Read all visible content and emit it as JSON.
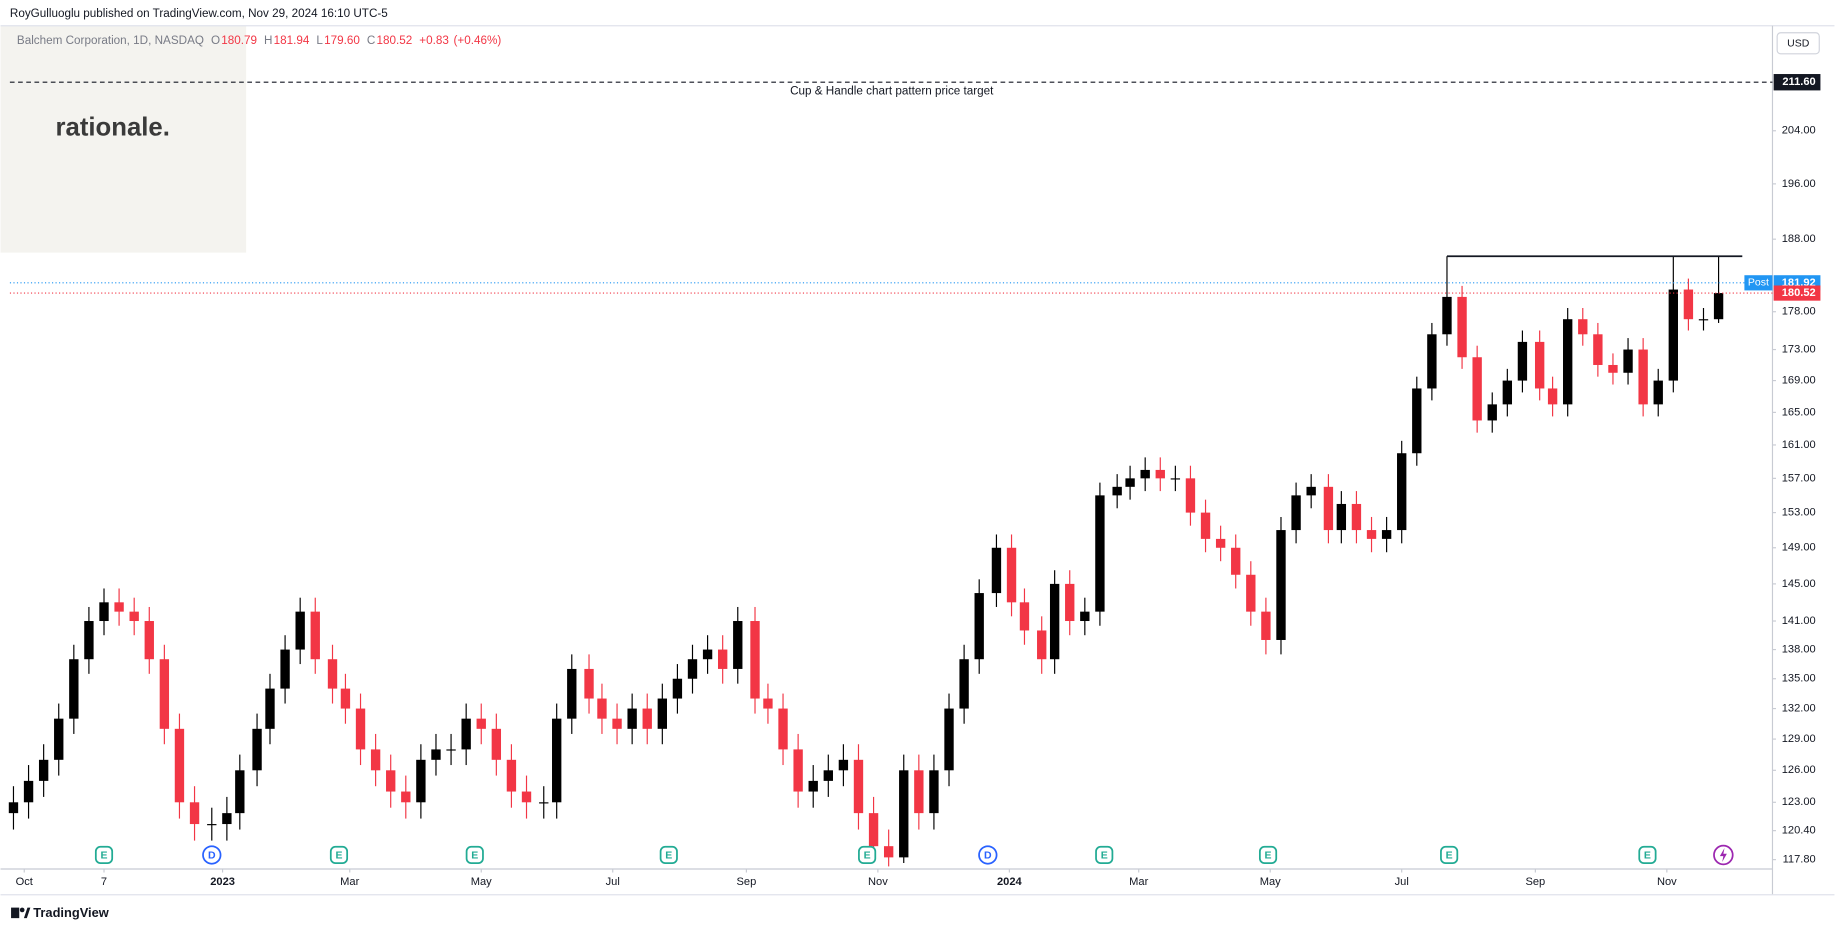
{
  "header": {
    "publisher": "RoyGulluoglu published on TradingView.com, Nov 29, 2024 16:10 UTC-5"
  },
  "watermark": "rationale.",
  "footer": "TradingView",
  "chart_data": {
    "type": "candlestick",
    "currency": "USD",
    "legend": {
      "symbol": "Balchem Corporation, 1D, NASDAQ",
      "fields": [
        {
          "key": "O",
          "value": 180.79
        },
        {
          "key": "H",
          "value": 181.94
        },
        {
          "key": "L",
          "value": 179.6,
          "label": "179.60"
        },
        {
          "key": "C",
          "value": 180.52
        }
      ],
      "change": {
        "value": 0.83,
        "label": "+0.83"
      },
      "change_pct": {
        "value": 0.46,
        "label": "(+0.46%)"
      }
    },
    "log_scale": true,
    "grid": false,
    "up_color": "#000000",
    "down_color": "#f23645",
    "xlim": [
      "2022-09-20",
      "2024-12-20"
    ],
    "xticks": [
      {
        "value": "2022-10-01",
        "label": "Oct"
      },
      {
        "value": "2022-11-07",
        "label": "7"
      },
      {
        "value": "2023-01-01",
        "label": "2023"
      },
      {
        "value": "2023-03-01",
        "label": "Mar"
      },
      {
        "value": "2023-05-01",
        "label": "May"
      },
      {
        "value": "2023-07-01",
        "label": "Jul"
      },
      {
        "value": "2023-09-01",
        "label": "Sep"
      },
      {
        "value": "2023-11-01",
        "label": "Nov"
      },
      {
        "value": "2024-01-01",
        "label": "2024"
      },
      {
        "value": "2024-03-01",
        "label": "Mar"
      },
      {
        "value": "2024-05-01",
        "label": "May"
      },
      {
        "value": "2024-07-01",
        "label": "Jul"
      },
      {
        "value": "2024-09-01",
        "label": "Sep"
      },
      {
        "value": "2024-11-01",
        "label": "Nov"
      }
    ],
    "ylim": [
      116.97,
      220.8
    ],
    "yticks": [
      {
        "value": 117.8,
        "label": "117.80"
      },
      {
        "value": 120.4,
        "label": "120.40"
      },
      {
        "value": 123,
        "label": "123.00"
      },
      {
        "value": 126,
        "label": "126.00"
      },
      {
        "value": 129,
        "label": "129.00"
      },
      {
        "value": 132,
        "label": "132.00"
      },
      {
        "value": 135,
        "label": "135.00"
      },
      {
        "value": 138,
        "label": "138.00"
      },
      {
        "value": 141,
        "label": "141.00"
      },
      {
        "value": 145,
        "label": "145.00"
      },
      {
        "value": 149,
        "label": "149.00"
      },
      {
        "value": 153,
        "label": "153.00"
      },
      {
        "value": 157,
        "label": "157.00"
      },
      {
        "value": 161,
        "label": "161.00"
      },
      {
        "value": 165,
        "label": "165.00"
      },
      {
        "value": 169,
        "label": "169.00"
      },
      {
        "value": 173,
        "label": "173.00"
      },
      {
        "value": 178,
        "label": "178.00"
      },
      {
        "value": 188,
        "label": "188.00"
      },
      {
        "value": 196,
        "label": "196.00"
      },
      {
        "value": 204,
        "label": "204.00"
      }
    ],
    "x": [
      "2022-09-26",
      "2022-10-03",
      "2022-10-10",
      "2022-10-17",
      "2022-10-24",
      "2022-10-31",
      "2022-11-07",
      "2022-11-14",
      "2022-11-21",
      "2022-11-28",
      "2022-12-05",
      "2022-12-12",
      "2022-12-19",
      "2022-12-27",
      "2023-01-03",
      "2023-01-09",
      "2023-01-17",
      "2023-01-23",
      "2023-01-30",
      "2023-02-06",
      "2023-02-13",
      "2023-02-21",
      "2023-02-27",
      "2023-03-06",
      "2023-03-13",
      "2023-03-20",
      "2023-03-27",
      "2023-04-03",
      "2023-04-10",
      "2023-04-17",
      "2023-04-24",
      "2023-05-01",
      "2023-05-08",
      "2023-05-15",
      "2023-05-22",
      "2023-05-30",
      "2023-06-05",
      "2023-06-12",
      "2023-06-20",
      "2023-06-26",
      "2023-07-03",
      "2023-07-10",
      "2023-07-17",
      "2023-07-24",
      "2023-07-31",
      "2023-08-07",
      "2023-08-14",
      "2023-08-21",
      "2023-08-28",
      "2023-09-05",
      "2023-09-11",
      "2023-09-18",
      "2023-09-25",
      "2023-10-02",
      "2023-10-09",
      "2023-10-16",
      "2023-10-23",
      "2023-10-30",
      "2023-11-06",
      "2023-11-13",
      "2023-11-20",
      "2023-11-27",
      "2023-12-04",
      "2023-12-11",
      "2023-12-18",
      "2023-12-26",
      "2024-01-02",
      "2024-01-08",
      "2024-01-16",
      "2024-01-22",
      "2024-01-29",
      "2024-02-05",
      "2024-02-12",
      "2024-02-20",
      "2024-02-26",
      "2024-03-04",
      "2024-03-11",
      "2024-03-18",
      "2024-03-25",
      "2024-04-01",
      "2024-04-08",
      "2024-04-15",
      "2024-04-22",
      "2024-04-29",
      "2024-05-06",
      "2024-05-13",
      "2024-05-20",
      "2024-05-28",
      "2024-06-03",
      "2024-06-10",
      "2024-06-17",
      "2024-06-24",
      "2024-07-01",
      "2024-07-08",
      "2024-07-15",
      "2024-07-22",
      "2024-07-29",
      "2024-08-05",
      "2024-08-12",
      "2024-08-19",
      "2024-08-26",
      "2024-09-03",
      "2024-09-09",
      "2024-09-16",
      "2024-09-23",
      "2024-09-30",
      "2024-10-07",
      "2024-10-14",
      "2024-10-21",
      "2024-10-28",
      "2024-11-04",
      "2024-11-11",
      "2024-11-18",
      "2024-11-25"
    ],
    "open": [
      122,
      123,
      125,
      127,
      131,
      137,
      141,
      143,
      142,
      141,
      137,
      130,
      123,
      121,
      121,
      122,
      126,
      130,
      134,
      138,
      142,
      137,
      134,
      132,
      128,
      126,
      124,
      123,
      127,
      128,
      128,
      131,
      130,
      127,
      124,
      123,
      123,
      131,
      136,
      133,
      131,
      130,
      132,
      130,
      133,
      135,
      137,
      138,
      136,
      141,
      133,
      132,
      128,
      124,
      125,
      126,
      127,
      122,
      119,
      118,
      126,
      122,
      126,
      132,
      137,
      144,
      149,
      143,
      140,
      137,
      145,
      141,
      142,
      155,
      156,
      157,
      158,
      157,
      157,
      153,
      150,
      149,
      146,
      142,
      139,
      151,
      155,
      156,
      151,
      154,
      151,
      150,
      151,
      160,
      168,
      175,
      180,
      172,
      164,
      166,
      169,
      174,
      168,
      166,
      177,
      175,
      171,
      170,
      173,
      166,
      169,
      181,
      177,
      177
    ],
    "high": [
      124.5,
      126.5,
      128.5,
      132.5,
      138.5,
      142.5,
      144.5,
      144.5,
      143.5,
      142.5,
      138.5,
      131.5,
      124.5,
      122.5,
      123.5,
      127.5,
      131.5,
      135.5,
      139.5,
      143.5,
      143.5,
      138.5,
      135.5,
      133.5,
      129.5,
      127.5,
      125.5,
      128.5,
      129.5,
      129.5,
      132.5,
      132.5,
      131.5,
      128.5,
      125.5,
      124.5,
      132.5,
      137.5,
      137.5,
      134.5,
      132.5,
      133.5,
      133.5,
      134.5,
      136.5,
      138.5,
      139.5,
      139.5,
      142.5,
      142.5,
      134.5,
      133.5,
      129.5,
      126.5,
      127.5,
      128.5,
      128.5,
      123.5,
      120.5,
      127.5,
      127.5,
      127.5,
      133.5,
      138.5,
      145.5,
      150.5,
      150.5,
      144.5,
      141.5,
      146.5,
      146.5,
      143.5,
      156.5,
      157.5,
      158.5,
      159.5,
      159.5,
      158.5,
      158.5,
      154.5,
      151.5,
      150.5,
      147.5,
      143.5,
      152.5,
      156.5,
      157.5,
      157.5,
      155.5,
      155.5,
      152.5,
      152.5,
      161.5,
      169.5,
      176.5,
      185.6,
      181.5,
      173.5,
      167.5,
      170.5,
      175.5,
      175.5,
      169.5,
      178.5,
      178.5,
      176.5,
      172.5,
      174.5,
      174.5,
      170.5,
      185.6,
      182.5,
      178.5,
      185.5
    ],
    "low": [
      120.5,
      121.5,
      123.5,
      125.5,
      129.5,
      135.5,
      139.5,
      140.5,
      139.5,
      135.5,
      128.5,
      121.5,
      119.5,
      119.5,
      119.5,
      120.5,
      124.5,
      128.5,
      132.5,
      136.5,
      135.5,
      132.5,
      130.5,
      126.5,
      124.5,
      122.5,
      121.5,
      121.5,
      125.5,
      126.5,
      126.5,
      128.5,
      125.5,
      122.5,
      121.5,
      121.5,
      121.5,
      129.5,
      131.5,
      129.5,
      128.5,
      128.5,
      128.5,
      128.5,
      131.5,
      133.5,
      135.5,
      134.5,
      134.5,
      131.5,
      130.5,
      126.5,
      122.5,
      122.5,
      123.5,
      124.5,
      120.5,
      117.5,
      117.2,
      117.5,
      120.5,
      120.5,
      124.5,
      130.5,
      135.5,
      142.5,
      141.5,
      138.5,
      135.5,
      135.5,
      139.5,
      139.5,
      140.5,
      153.5,
      154.5,
      155.5,
      155.5,
      155.5,
      151.5,
      148.5,
      147.5,
      144.5,
      140.5,
      137.5,
      137.5,
      149.5,
      153.5,
      149.5,
      149.5,
      149.5,
      148.5,
      148.5,
      149.5,
      158.5,
      166.5,
      173.5,
      170.5,
      162.5,
      162.5,
      164.5,
      167.5,
      166.5,
      164.5,
      164.5,
      173.5,
      169.5,
      168.5,
      168.5,
      164.5,
      164.5,
      167.5,
      175.5,
      175.5,
      176.5
    ],
    "close": [
      123,
      125,
      127,
      131,
      137,
      141,
      143,
      142,
      141,
      137,
      130,
      123,
      121,
      121,
      122,
      126,
      130,
      134,
      138,
      142,
      137,
      134,
      132,
      128,
      126,
      124,
      123,
      127,
      128,
      128,
      131,
      130,
      127,
      124,
      123,
      123,
      131,
      136,
      133,
      131,
      130,
      132,
      130,
      133,
      135,
      137,
      138,
      136,
      141,
      133,
      132,
      128,
      124,
      125,
      126,
      127,
      122,
      119,
      118,
      126,
      122,
      126,
      132,
      137,
      144,
      149,
      143,
      140,
      137,
      145,
      141,
      142,
      155,
      156,
      157,
      158,
      157,
      157,
      153,
      150,
      149,
      146,
      142,
      139,
      151,
      155,
      156,
      151,
      154,
      151,
      150,
      151,
      160,
      168,
      175,
      180,
      172,
      164,
      166,
      169,
      174,
      168,
      166,
      177,
      175,
      171,
      170,
      173,
      166,
      169,
      181,
      177,
      177,
      180.52
    ],
    "target": {
      "value": 211.6,
      "label": "211.60",
      "text": "Cup & Handle chart pattern price target"
    },
    "post": {
      "value": 181.92,
      "tag": "Post",
      "color": "#2196f3"
    },
    "last": {
      "value": 180.52,
      "color": "#f23645"
    },
    "resistance": {
      "value": 185.6,
      "start": "2024-07-22",
      "end": "2024-12-06"
    },
    "events": [
      {
        "label": "E",
        "date": "2022-11-07"
      },
      {
        "label": "D",
        "date": "2022-12-27"
      },
      {
        "label": "E",
        "date": "2023-02-24"
      },
      {
        "label": "E",
        "date": "2023-04-28"
      },
      {
        "label": "E",
        "date": "2023-07-27"
      },
      {
        "label": "E",
        "date": "2023-10-27"
      },
      {
        "label": "D",
        "date": "2023-12-22"
      },
      {
        "label": "E",
        "date": "2024-02-14"
      },
      {
        "label": "E",
        "date": "2024-04-30"
      },
      {
        "label": "E",
        "date": "2024-07-23"
      },
      {
        "label": "E",
        "date": "2024-10-23"
      }
    ]
  }
}
